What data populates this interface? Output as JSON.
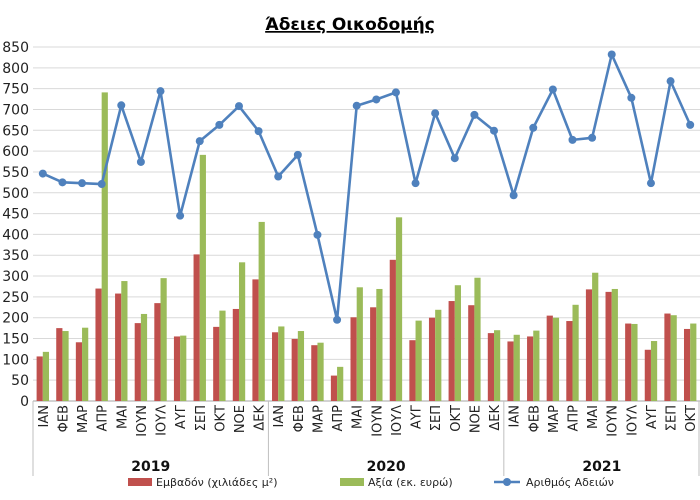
{
  "chart_data": {
    "type": "bar",
    "title": "Άδειες Οικοδομής",
    "ylim": [
      0,
      850
    ],
    "yticks": [
      0,
      50,
      100,
      150,
      200,
      250,
      300,
      350,
      400,
      450,
      500,
      550,
      600,
      650,
      700,
      750,
      800,
      850
    ],
    "yticks_shown": [
      "0",
      "50",
      "100",
      "150",
      "200",
      "250",
      "300",
      "350",
      "400",
      "450",
      "500",
      "550",
      "600",
      "650",
      "700",
      "750",
      "800",
      "850"
    ],
    "grid": true,
    "legend_position": "bottom",
    "categories": [
      "ΙΑΝ",
      "ΦΕΒ",
      "ΜΑΡ",
      "ΑΠΡ",
      "ΜΑΙ",
      "ΙΟΥΝ",
      "ΙΟΥΛ",
      "ΑΥΓ",
      "ΣΕΠ",
      "ΟΚΤ",
      "ΝΟΕ",
      "ΔΕΚ",
      "ΙΑΝ",
      "ΦΕΒ",
      "ΜΑΡ",
      "ΑΠΡ",
      "ΜΑΙ",
      "ΙΟΥΝ",
      "ΙΟΥΛ",
      "ΑΥΓ",
      "ΣΕΠ",
      "ΟΚΤ",
      "ΝΟΕ",
      "ΔΕΚ",
      "ΙΑΝ",
      "ΦΕΒ",
      "ΜΑΡ",
      "ΑΠΡ",
      "ΜΑΙ",
      "ΙΟΥΝ",
      "ΙΟΥΛ",
      "ΑΥΓ",
      "ΣΕΠ",
      "ΟΚΤ"
    ],
    "year_groups": [
      {
        "label": "2019",
        "count": 12
      },
      {
        "label": "2020",
        "count": 12
      },
      {
        "label": "2021",
        "count": 10
      }
    ],
    "series": [
      {
        "name": "Εμβαδόν (χιλιάδες μ²)",
        "type": "bar",
        "color": "#C0504D",
        "values": [
          107,
          175,
          141,
          270,
          258,
          187,
          235,
          155,
          352,
          178,
          221,
          292,
          165,
          149,
          134,
          61,
          201,
          225,
          339,
          146,
          200,
          240,
          230,
          163,
          143,
          155,
          205,
          192,
          268,
          262,
          186,
          123,
          210,
          173
        ]
      },
      {
        "name": "Αξία (εκ. ευρώ)",
        "type": "bar",
        "color": "#9BBB59",
        "values": [
          118,
          168,
          176,
          741,
          288,
          209,
          295,
          157,
          591,
          217,
          333,
          430,
          179,
          168,
          140,
          82,
          273,
          269,
          441,
          193,
          219,
          278,
          296,
          170,
          159,
          169,
          200,
          231,
          308,
          269,
          185,
          144,
          206,
          186
        ]
      },
      {
        "name": "Αριθμός Αδειών",
        "type": "line",
        "color": "#4F81BD",
        "values": [
          546,
          525,
          523,
          521,
          710,
          574,
          744,
          445,
          624,
          663,
          708,
          648,
          539,
          591,
          399,
          195,
          709,
          724,
          741,
          523,
          691,
          583,
          687,
          649,
          494,
          656,
          748,
          627,
          632,
          832,
          728,
          523,
          768,
          663
        ]
      }
    ]
  }
}
